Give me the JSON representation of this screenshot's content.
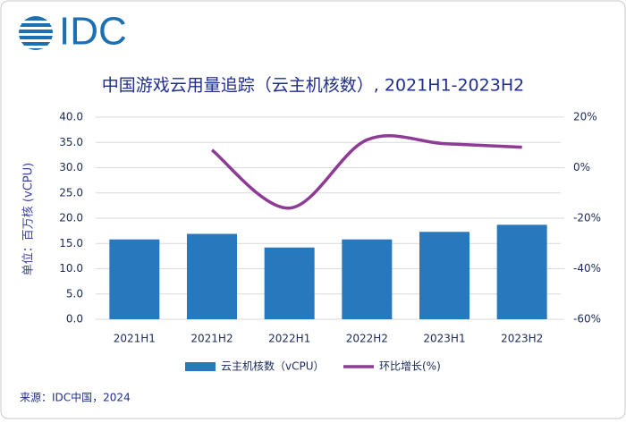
{
  "chart_data": {
    "type": "bar_line",
    "logo": "IDC",
    "title": "中国游戏云用量追踪（云主机核数）, 2021H1-2023H2",
    "y_label": "单位：百万核 (vCPU)",
    "source": "来源：IDC中国，2024",
    "categories": [
      "2021H1",
      "2021H2",
      "2022H1",
      "2022H2",
      "2023H1",
      "2023H2"
    ],
    "series": [
      {
        "name": "云主机核数（vCPU）",
        "color": "#2878be",
        "type": "bar",
        "values": [
          15.8,
          16.9,
          14.2,
          15.8,
          17.3,
          18.7
        ]
      },
      {
        "name": "环比增长(%)",
        "color": "#8e3b96",
        "type": "line",
        "axis": "y2",
        "values": [
          null,
          7,
          -16,
          11,
          9.5,
          8.1
        ]
      }
    ],
    "ylim": [
      0,
      40
    ],
    "yticks": [
      {
        "value": 0,
        "label": "0.0"
      },
      {
        "value": 5,
        "label": "5.0"
      },
      {
        "value": 10,
        "label": "10.0"
      },
      {
        "value": 15,
        "label": "15.0"
      },
      {
        "value": 20,
        "label": "20.0"
      },
      {
        "value": 25,
        "label": "25.0"
      },
      {
        "value": 30,
        "label": "30.0"
      },
      {
        "value": 35,
        "label": "35.0"
      },
      {
        "value": 40,
        "label": "40.0"
      }
    ],
    "y2lim": [
      -60,
      20
    ],
    "y2ticks": [
      {
        "value": -60,
        "label": "-60%"
      },
      {
        "value": -40,
        "label": "-40%"
      },
      {
        "value": -20,
        "label": "-20%"
      },
      {
        "value": 0,
        "label": "0%"
      },
      {
        "value": 20,
        "label": "20%"
      }
    ],
    "grid": true
  }
}
